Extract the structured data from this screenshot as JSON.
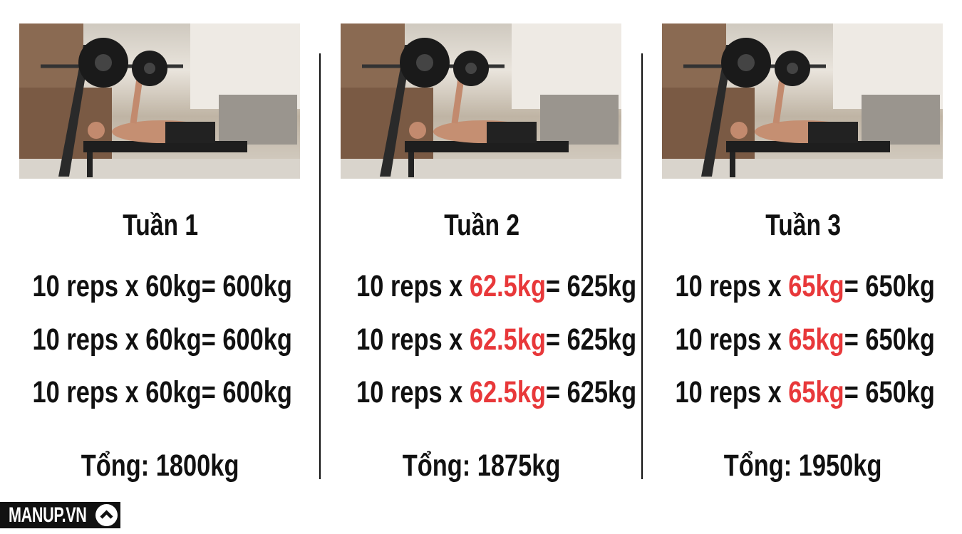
{
  "columns": [
    {
      "title": "Tuần 1",
      "rows": [
        {
          "prefix": "10 reps x ",
          "weight": "60kg",
          "result": "= 600kg"
        },
        {
          "prefix": "10 reps x ",
          "weight": "60kg",
          "result": "= 600kg"
        },
        {
          "prefix": "10 reps x ",
          "weight": "60kg",
          "result": "= 600kg"
        }
      ],
      "total": "Tổng: 1800kg",
      "weight_highlighted": false
    },
    {
      "title": "Tuần 2",
      "rows": [
        {
          "prefix": "10 reps x ",
          "weight": "62.5kg",
          "result": "= 625kg"
        },
        {
          "prefix": "10 reps x ",
          "weight": "62.5kg",
          "result": "= 625kg"
        },
        {
          "prefix": "10 reps x ",
          "weight": "62.5kg",
          "result": "= 625kg"
        }
      ],
      "total": "Tổng: 1875kg",
      "weight_highlighted": true
    },
    {
      "title": "Tuần 3",
      "rows": [
        {
          "prefix": "10 reps x ",
          "weight": "65kg",
          "result": "= 650kg"
        },
        {
          "prefix": "10 reps x ",
          "weight": "65kg",
          "result": "= 650kg"
        },
        {
          "prefix": "10 reps x ",
          "weight": "65kg",
          "result": "= 650kg"
        }
      ],
      "total": "Tổng: 1950kg",
      "weight_highlighted": true
    }
  ],
  "colors": {
    "highlight": "#e8383a",
    "text": "#111111"
  },
  "logo": {
    "text": "MANUP.VN",
    "icon": "chevron-up-icon"
  }
}
